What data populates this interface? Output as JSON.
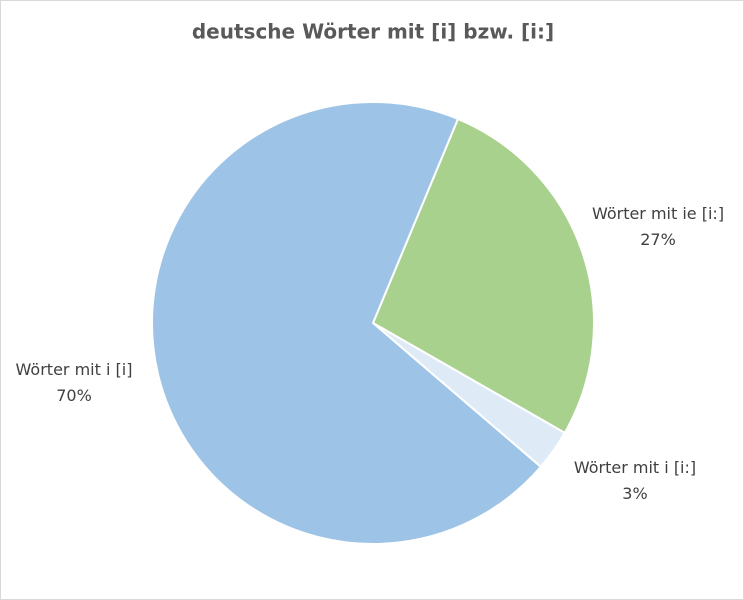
{
  "chart_data": {
    "type": "pie",
    "title": "deutsche Wörter mit [i] bzw. [i:]",
    "categories": [
      "Wörter mit ie [i:]",
      "Wörter mit i [i:]",
      "Wörter mit i [i]"
    ],
    "values": [
      27,
      3,
      70
    ],
    "value_labels": [
      "27%",
      "3%",
      "70%"
    ],
    "colors": [
      "#a9d18e",
      "#deebf7",
      "#9dc3e6"
    ]
  }
}
